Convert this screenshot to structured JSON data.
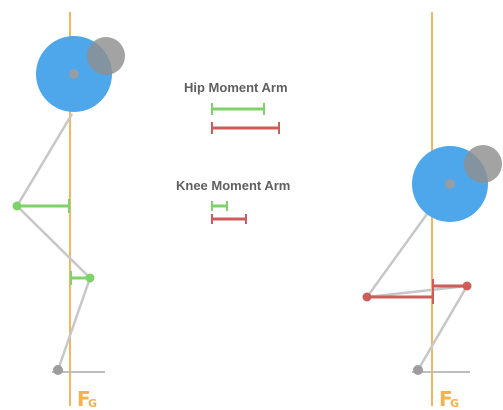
{
  "colors": {
    "background": "#ffffff",
    "force_line": "#f6b560",
    "bone": "#c7c7c7",
    "hip_arm": "#7fd26a",
    "knee_arm": "#cf5b5b",
    "bar_main": "#4da7ea",
    "bar_cap": "#8f8f8f",
    "ground": "#bdbdbd",
    "joint": "#9d9d9d",
    "legend_text": "#5f5f5f",
    "label": "#f3b24a"
  },
  "legend": {
    "hip_title": "Hip Moment Arm",
    "knee_title": "Knee Moment Arm"
  },
  "left_figure": {
    "force_label_main": "F",
    "force_label_sub": "G"
  },
  "right_figure": {
    "force_label_main": "F",
    "force_label_sub": "G"
  }
}
